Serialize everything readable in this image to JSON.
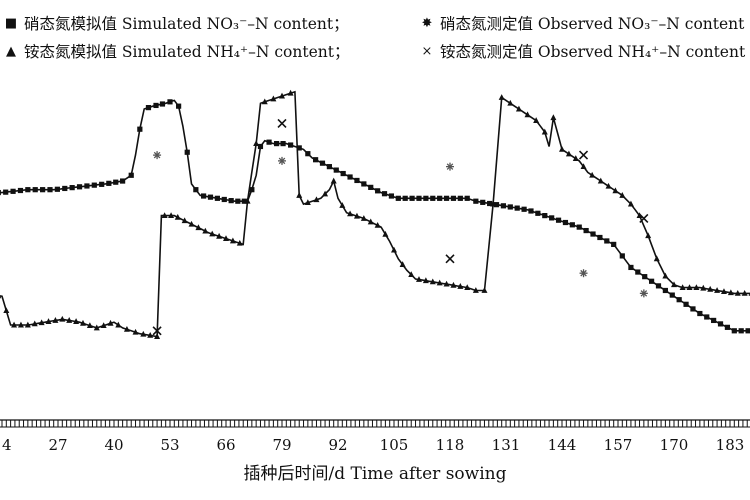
{
  "legend": {
    "row1": [
      {
        "symbol": "■",
        "label": "硝态氮模拟值 Simulated NO₃⁻–N content；"
      },
      {
        "symbol": "✸",
        "label": "硝态氮测定值 Observed NO₃⁻–N content"
      }
    ],
    "row2": [
      {
        "symbol": "▲",
        "label": "铵态氮模拟值 Simulated NH₄⁺–N content；"
      },
      {
        "symbol": "×",
        "label": "铵态氮测定值 Observed NH₄⁺–N content"
      }
    ]
  },
  "chart_data": {
    "type": "line",
    "xlabel": "插种后时间/d   Time after sowing",
    "ylabel": "",
    "xticks": [
      14,
      27,
      40,
      53,
      66,
      79,
      92,
      105,
      118,
      131,
      144,
      157,
      170,
      183
    ],
    "xlim": [
      14,
      187
    ],
    "ylim": [
      0,
      100
    ],
    "grid": false,
    "legend_position": "top",
    "series": [
      {
        "name": "硝态氮模拟值 Simulated NO₃⁻–N content",
        "style": "line-square",
        "points": [
          [
            8,
            63
          ],
          [
            14,
            63
          ],
          [
            20,
            64
          ],
          [
            26,
            64
          ],
          [
            32,
            65
          ],
          [
            38,
            66
          ],
          [
            42,
            67
          ],
          [
            44,
            69
          ],
          [
            45,
            76
          ],
          [
            46,
            85
          ],
          [
            47,
            92
          ],
          [
            49,
            93
          ],
          [
            52,
            94
          ],
          [
            54,
            95
          ],
          [
            55,
            93
          ],
          [
            56,
            86
          ],
          [
            57,
            77
          ],
          [
            58,
            66
          ],
          [
            60,
            62
          ],
          [
            64,
            61
          ],
          [
            68,
            60
          ],
          [
            71,
            60
          ],
          [
            72,
            64
          ],
          [
            73,
            69
          ],
          [
            74,
            79
          ],
          [
            75,
            81
          ],
          [
            77,
            80
          ],
          [
            80,
            80
          ],
          [
            82,
            79
          ],
          [
            84,
            78
          ],
          [
            86,
            75
          ],
          [
            90,
            72
          ],
          [
            94,
            69
          ],
          [
            98,
            66
          ],
          [
            102,
            63
          ],
          [
            106,
            61
          ],
          [
            110,
            61
          ],
          [
            114,
            61
          ],
          [
            118,
            61
          ],
          [
            122,
            61
          ],
          [
            124,
            60
          ],
          [
            128,
            59
          ],
          [
            132,
            58
          ],
          [
            136,
            57
          ],
          [
            140,
            55
          ],
          [
            144,
            53
          ],
          [
            148,
            51
          ],
          [
            152,
            48
          ],
          [
            156,
            45
          ],
          [
            158,
            41
          ],
          [
            160,
            37
          ],
          [
            164,
            33
          ],
          [
            168,
            29
          ],
          [
            172,
            25
          ],
          [
            176,
            21
          ],
          [
            180,
            18
          ],
          [
            184,
            15
          ],
          [
            188,
            15
          ]
        ]
      },
      {
        "name": "铵态氮模拟值 Simulated NH₄⁺–N content",
        "style": "line-triangle",
        "points": [
          [
            8,
            28
          ],
          [
            14,
            27
          ],
          [
            15,
            22
          ],
          [
            16,
            17
          ],
          [
            20,
            17
          ],
          [
            24,
            18
          ],
          [
            28,
            19
          ],
          [
            32,
            18
          ],
          [
            36,
            16
          ],
          [
            40,
            18
          ],
          [
            42,
            16
          ],
          [
            44,
            15
          ],
          [
            46,
            14
          ],
          [
            50,
            13
          ],
          [
            51,
            55
          ],
          [
            54,
            55
          ],
          [
            58,
            52
          ],
          [
            62,
            49
          ],
          [
            66,
            47
          ],
          [
            70,
            45
          ],
          [
            71,
            60
          ],
          [
            72,
            70
          ],
          [
            73,
            80
          ],
          [
            74,
            94
          ],
          [
            76,
            95
          ],
          [
            78,
            96
          ],
          [
            80,
            97
          ],
          [
            82,
            98
          ],
          [
            83,
            62
          ],
          [
            84,
            59
          ],
          [
            86,
            60
          ],
          [
            88,
            61
          ],
          [
            90,
            64
          ],
          [
            91,
            67
          ],
          [
            92,
            61
          ],
          [
            94,
            56
          ],
          [
            98,
            54
          ],
          [
            102,
            51
          ],
          [
            104,
            46
          ],
          [
            106,
            40
          ],
          [
            108,
            36
          ],
          [
            110,
            33
          ],
          [
            114,
            32
          ],
          [
            118,
            31
          ],
          [
            122,
            30
          ],
          [
            124,
            29
          ],
          [
            126,
            29
          ],
          [
            128,
            59
          ],
          [
            130,
            96
          ],
          [
            132,
            94
          ],
          [
            134,
            92
          ],
          [
            136,
            90
          ],
          [
            138,
            88
          ],
          [
            140,
            84
          ],
          [
            141,
            79
          ],
          [
            142,
            89
          ],
          [
            144,
            78
          ],
          [
            148,
            74
          ],
          [
            150,
            70
          ],
          [
            152,
            68
          ],
          [
            154,
            66
          ],
          [
            158,
            62
          ],
          [
            160,
            59
          ],
          [
            162,
            55
          ],
          [
            164,
            48
          ],
          [
            166,
            40
          ],
          [
            168,
            34
          ],
          [
            170,
            31
          ],
          [
            172,
            30
          ],
          [
            176,
            30
          ],
          [
            180,
            29
          ],
          [
            184,
            28
          ],
          [
            188,
            28
          ]
        ]
      },
      {
        "name": "硝态氮测定值 Observed NO₃⁻–N content",
        "style": "marker-asterisk",
        "points": [
          [
            50,
            76
          ],
          [
            79,
            74
          ],
          [
            118,
            72
          ],
          [
            149,
            35
          ],
          [
            163,
            28
          ]
        ]
      },
      {
        "name": "铵态氮测定值 Observed NH₄⁺–N content",
        "style": "marker-x",
        "points": [
          [
            50,
            15
          ],
          [
            79,
            87
          ],
          [
            118,
            40
          ],
          [
            149,
            76
          ],
          [
            163,
            54
          ]
        ]
      }
    ]
  },
  "colors": {
    "line": "#111111",
    "background": "#ffffff"
  }
}
